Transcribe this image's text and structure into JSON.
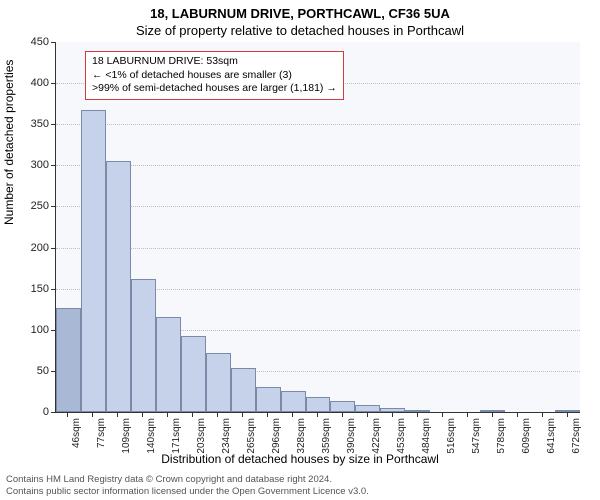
{
  "title_line1": "18, LABURNUM DRIVE, PORTHCAWL, CF36 5UA",
  "title_line2": "Size of property relative to detached houses in Porthcawl",
  "ylabel": "Number of detached properties",
  "xlabel": "Distribution of detached houses by size in Porthcawl",
  "chart": {
    "type": "bar",
    "background_color": "#f6f8fb",
    "bar_fill": "#c5d2ea",
    "bar_edge": "#7a8aa8",
    "first_bar_fill": "#a9b8d4",
    "grid_color": "#b8c0cc",
    "ylim": [
      0,
      450
    ],
    "ytick_step": 50,
    "categories": [
      "46sqm",
      "77sqm",
      "109sqm",
      "140sqm",
      "171sqm",
      "203sqm",
      "234sqm",
      "265sqm",
      "296sqm",
      "328sqm",
      "359sqm",
      "390sqm",
      "422sqm",
      "453sqm",
      "484sqm",
      "516sqm",
      "547sqm",
      "578sqm",
      "609sqm",
      "641sqm",
      "672sqm"
    ],
    "values": [
      126,
      367,
      305,
      162,
      115,
      92,
      72,
      54,
      30,
      26,
      18,
      14,
      8,
      5,
      3,
      0,
      0,
      3,
      0,
      0,
      2
    ],
    "bar_width_ratio": 1.0
  },
  "callout": {
    "line1": "18 LABURNUM DRIVE: 53sqm",
    "line2": "← <1% of detached houses are smaller (3)",
    "line3": ">99% of semi-detached houses are larger (1,181) →"
  },
  "footer": {
    "line1": "Contains HM Land Registry data © Crown copyright and database right 2024.",
    "line2": "Contains public sector information licensed under the Open Government Licence v3.0."
  }
}
